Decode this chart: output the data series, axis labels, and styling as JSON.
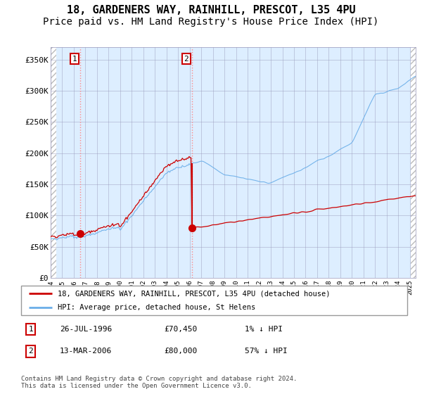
{
  "title": "18, GARDENERS WAY, RAINHILL, PRESCOT, L35 4PU",
  "subtitle": "Price paid vs. HM Land Registry's House Price Index (HPI)",
  "xlim_start": 1994.0,
  "xlim_end": 2025.5,
  "ylim": [
    0,
    370000
  ],
  "yticks": [
    0,
    50000,
    100000,
    150000,
    200000,
    250000,
    300000,
    350000
  ],
  "ytick_labels": [
    "£0",
    "£50K",
    "£100K",
    "£150K",
    "£200K",
    "£250K",
    "£300K",
    "£350K"
  ],
  "sale1_date": 1996.57,
  "sale1_price": 70450,
  "sale1_label": "1",
  "sale2_date": 2006.2,
  "sale2_price": 80000,
  "sale2_label": "2",
  "hpi_color": "#6aaee8",
  "price_color": "#cc0000",
  "shaded_region_color": "#ddeeff",
  "dashed_line_color": "#ff8888",
  "legend_label1": "18, GARDENERS WAY, RAINHILL, PRESCOT, L35 4PU (detached house)",
  "legend_label2": "HPI: Average price, detached house, St Helens",
  "table_row1": [
    "1",
    "26-JUL-1996",
    "£70,450",
    "1% ↓ HPI"
  ],
  "table_row2": [
    "2",
    "13-MAR-2006",
    "£80,000",
    "57% ↓ HPI"
  ],
  "footer": "Contains HM Land Registry data © Crown copyright and database right 2024.\nThis data is licensed under the Open Government Licence v3.0.",
  "title_fontsize": 11,
  "subtitle_fontsize": 10
}
